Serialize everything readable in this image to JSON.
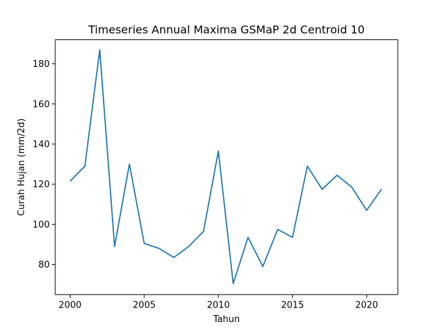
{
  "chart_data": {
    "type": "line",
    "title": "Timeseries Annual Maxima GSMaP 2d Centroid 10",
    "xlabel": "Tahun",
    "ylabel": "Curah Hujan (mm/2d)",
    "xlim": [
      1999.0,
      2022.1
    ],
    "ylim": [
      65,
      192
    ],
    "xticks": [
      2000,
      2005,
      2010,
      2015,
      2020
    ],
    "yticks": [
      80,
      100,
      120,
      140,
      160,
      180
    ],
    "grid": false,
    "line_color": "#1f77b4",
    "series": [
      {
        "x": [
          2000,
          2001,
          2002,
          2003,
          2004,
          2005,
          2006,
          2007,
          2008,
          2009,
          2010,
          2011,
          2012,
          2013,
          2014,
          2015,
          2016,
          2017,
          2018,
          2019,
          2020,
          2021
        ],
        "values": [
          121.5,
          129,
          187,
          89,
          130,
          90.5,
          88,
          83.5,
          89,
          96.5,
          136.5,
          70.5,
          93.5,
          79,
          97.5,
          93.5,
          129,
          117.5,
          124.5,
          118.5,
          107,
          117.5
        ]
      }
    ]
  }
}
